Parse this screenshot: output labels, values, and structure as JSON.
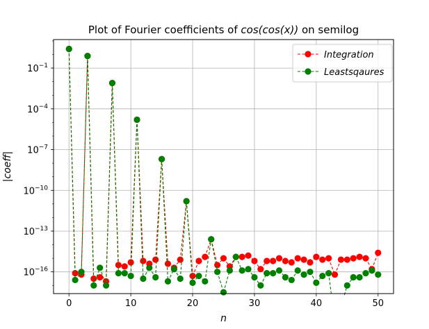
{
  "chart_data": {
    "type": "line",
    "title_prefix": "Plot of Fourier coefficients of ",
    "title_math": "cos(cos(x))",
    "title_suffix": " on semilog",
    "xlabel": "n",
    "ylabel": "|coeff|",
    "x_scale": "linear",
    "y_scale": "log",
    "xlim": [
      -2.5,
      52.5
    ],
    "ylim_log10": [
      -17.6,
      1.1
    ],
    "grid": true,
    "legend_position": "upper right",
    "x_ticks": [
      0,
      10,
      20,
      30,
      40,
      50
    ],
    "y_ticks": [
      {
        "exp": -1,
        "label_base": "10",
        "label_exp": "−1"
      },
      {
        "exp": -4,
        "label_base": "10",
        "label_exp": "−4"
      },
      {
        "exp": -7,
        "label_base": "10",
        "label_exp": "−7"
      },
      {
        "exp": -10,
        "label_base": "10",
        "label_exp": "−10"
      },
      {
        "exp": -13,
        "label_base": "10",
        "label_exp": "−13"
      },
      {
        "exp": -16,
        "label_base": "10",
        "label_exp": "−16"
      }
    ],
    "x": [
      0,
      1,
      2,
      3,
      4,
      5,
      6,
      7,
      8,
      9,
      10,
      11,
      12,
      13,
      14,
      15,
      16,
      17,
      18,
      19,
      20,
      21,
      22,
      23,
      24,
      25,
      26,
      27,
      28,
      29,
      30,
      31,
      32,
      33,
      34,
      35,
      36,
      37,
      38,
      39,
      40,
      41,
      42,
      43,
      44,
      45,
      46,
      47,
      48,
      49,
      50
    ],
    "series": [
      {
        "name": "Integration",
        "color": "#ff0000",
        "linestyle": "dashed",
        "marker": "circle",
        "log10_values": [
          0.41,
          -16.1,
          -16.2,
          -0.11,
          -16.5,
          -16.4,
          -16.7,
          -2.1,
          -15.5,
          -15.6,
          -15.3,
          -4.8,
          -15.2,
          -15.4,
          -15.1,
          -7.7,
          -15.4,
          -15.7,
          -15.1,
          -10.8,
          -16.3,
          -15.2,
          -14.9,
          -13.6,
          -15.5,
          -15.0,
          -15.6,
          -14.9,
          -14.9,
          -14.8,
          -15.2,
          -15.8,
          -15.2,
          -15.2,
          -15.0,
          -15.2,
          -15.3,
          -15.0,
          -15.1,
          -15.3,
          -14.9,
          -15.1,
          -15.0,
          -16.2,
          -15.1,
          -15.1,
          -15.0,
          -14.9,
          -15.0,
          -15.8,
          -14.6
        ]
      },
      {
        "name": "Leastsqaures",
        "color": "#008000",
        "linestyle": "dashed",
        "marker": "circle",
        "log10_values": [
          0.41,
          -16.6,
          -16.0,
          -0.11,
          -17.0,
          -15.7,
          -17.0,
          -2.1,
          -16.1,
          -16.1,
          -16.3,
          -4.8,
          -16.5,
          -15.7,
          -16.4,
          -7.7,
          -16.7,
          -15.8,
          -16.5,
          -10.8,
          -16.8,
          -16.3,
          -16.7,
          -13.6,
          -16.0,
          -17.5,
          -15.9,
          -14.9,
          -15.9,
          -15.8,
          -16.4,
          -17.0,
          -16.1,
          -16.1,
          -15.9,
          -16.4,
          -16.6,
          -15.9,
          -16.2,
          -16.0,
          -16.8,
          -16.3,
          -16.1,
          null,
          null,
          -17.0,
          -16.4,
          -16.4,
          -16.1,
          -15.9,
          -16.2
        ]
      }
    ]
  }
}
